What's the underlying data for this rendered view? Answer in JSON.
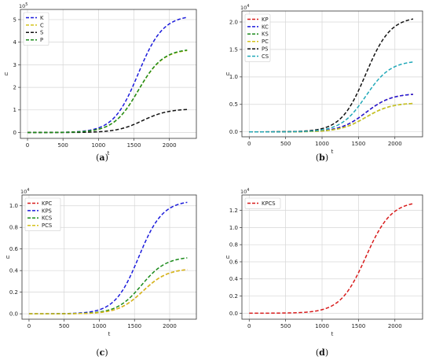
{
  "chart_data": [
    {
      "type": "line",
      "caption": "(a)",
      "xlabel": "t",
      "ylabel": "u",
      "y_multiplier": "10^5",
      "x_ticks": [
        0,
        500,
        1000,
        1500,
        2000
      ],
      "y_ticks": [
        0,
        1,
        2,
        3,
        4,
        5
      ],
      "xlim": [
        -100,
        2380
      ],
      "ylim": [
        -0.26,
        5.45
      ],
      "grid": true,
      "legend": "top-left",
      "series": [
        {
          "name": "K",
          "color": "#1a1adb",
          "final": 5.2,
          "mid": 1560,
          "width": 175
        },
        {
          "name": "C",
          "color": "#d4c21a",
          "final": 3.7,
          "mid": 1560,
          "width": 175
        },
        {
          "name": "S",
          "color": "#111111",
          "final": 1.05,
          "mid": 1620,
          "width": 180
        },
        {
          "name": "P",
          "color": "#1a8a1a",
          "final": 3.72,
          "mid": 1560,
          "width": 175
        }
      ]
    },
    {
      "type": "line",
      "caption": "(b)",
      "xlabel": "t",
      "ylabel": "u",
      "y_multiplier": "10^4",
      "x_ticks": [
        0,
        500,
        1000,
        1500,
        2000
      ],
      "y_ticks": [
        0.0,
        0.5,
        1.0,
        1.5,
        2.0
      ],
      "xlim": [
        -100,
        2380
      ],
      "ylim": [
        -0.09,
        2.2
      ],
      "grid": true,
      "legend": "top-left",
      "series": [
        {
          "name": "KP",
          "color": "#d81b1b",
          "final": 0.7,
          "mid": 1600,
          "width": 175
        },
        {
          "name": "KC",
          "color": "#1a1adb",
          "final": 0.7,
          "mid": 1600,
          "width": 175
        },
        {
          "name": "KS",
          "color": "#1a8a1a",
          "final": 0.53,
          "mid": 1600,
          "width": 175
        },
        {
          "name": "PC",
          "color": "#d4c21a",
          "final": 0.53,
          "mid": 1600,
          "width": 175
        },
        {
          "name": "PS",
          "color": "#111111",
          "final": 2.1,
          "mid": 1600,
          "width": 170
        },
        {
          "name": "CS",
          "color": "#20a8b8",
          "final": 1.3,
          "mid": 1600,
          "width": 170
        }
      ]
    },
    {
      "type": "line",
      "caption": "(c)",
      "xlabel": "t",
      "ylabel": "u",
      "y_multiplier": "10^4",
      "x_ticks": [
        0,
        500,
        1000,
        1500,
        2000
      ],
      "y_ticks": [
        0.0,
        0.2,
        0.4,
        0.6,
        0.8,
        1.0
      ],
      "xlim": [
        -100,
        2380
      ],
      "ylim": [
        -0.05,
        1.1
      ],
      "grid": true,
      "legend": "top-left",
      "series": [
        {
          "name": "KPC",
          "color": "#d81b1b",
          "final": 0.42,
          "mid": 1620,
          "width": 175
        },
        {
          "name": "KPS",
          "color": "#1a1adb",
          "final": 1.05,
          "mid": 1560,
          "width": 170
        },
        {
          "name": "KCS",
          "color": "#1a8a1a",
          "final": 0.53,
          "mid": 1600,
          "width": 175
        },
        {
          "name": "PCS",
          "color": "#d4c21a",
          "final": 0.42,
          "mid": 1620,
          "width": 175
        }
      ]
    },
    {
      "type": "line",
      "caption": "(d)",
      "xlabel": "t",
      "ylabel": "u",
      "y_multiplier": "10^4",
      "x_ticks": [
        0,
        500,
        1000,
        1500,
        2000
      ],
      "y_ticks": [
        0.0,
        0.2,
        0.4,
        0.6,
        0.8,
        1.0,
        1.2
      ],
      "xlim": [
        -100,
        2380
      ],
      "ylim": [
        -0.07,
        1.38
      ],
      "grid": true,
      "legend": "top-left",
      "series": [
        {
          "name": "KPCS",
          "color": "#d81b1b",
          "final": 1.31,
          "mid": 1600,
          "width": 175
        }
      ]
    }
  ]
}
